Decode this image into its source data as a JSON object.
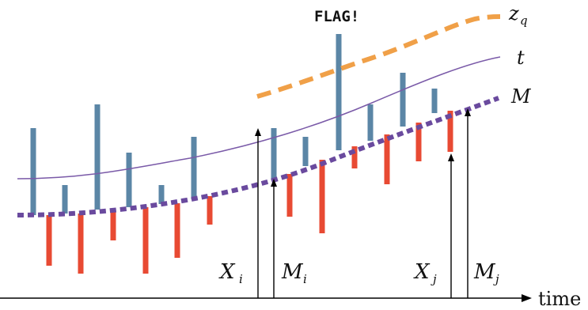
{
  "flag_text": "FLAG!",
  "axis": {
    "label": "time"
  },
  "curve_labels": {
    "zq_main": "z",
    "zq_sub": "q",
    "t": "t",
    "M": "M"
  },
  "markers": {
    "Xi_main": "X",
    "Xi_sub": "i",
    "Mi_main": "M",
    "Mi_sub": "i",
    "Xj_main": "X",
    "Xj_sub": "j",
    "Mj_main": "M",
    "Mj_sub": "j"
  },
  "colors": {
    "bar_up": "#5b86a6",
    "bar_down": "#e84a33",
    "curve_t": "#7a5aa8",
    "curve_M": "#6a4a9e",
    "curve_zq": "#f0a048",
    "arrow": "#000000"
  }
}
